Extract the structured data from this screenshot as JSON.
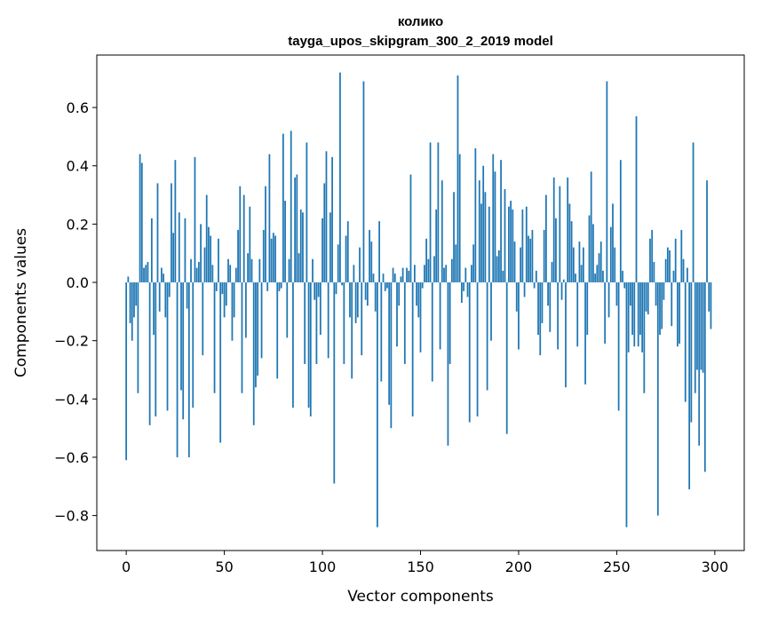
{
  "chart_data": {
    "type": "bar",
    "title_line1": "колико",
    "title_line2": "tayga_upos_skipgram_300_2_2019 model",
    "xlabel": "Vector components",
    "ylabel": "Components values",
    "xlim": [
      -15,
      315
    ],
    "ylim": [
      -0.92,
      0.78
    ],
    "xticks": [
      0,
      50,
      100,
      150,
      200,
      250,
      300
    ],
    "yticks": [
      -0.8,
      -0.6,
      -0.4,
      -0.2,
      0.0,
      0.2,
      0.4,
      0.6
    ],
    "xtick_labels": [
      "0",
      "50",
      "100",
      "150",
      "200",
      "250",
      "300"
    ],
    "ytick_labels": [
      "−0.8",
      "−0.6",
      "−0.4",
      "−0.2",
      "0.0",
      "0.2",
      "0.4",
      "0.6"
    ],
    "bar_color": "#1f77b4",
    "values": [
      -0.61,
      0.02,
      -0.14,
      -0.2,
      -0.12,
      -0.08,
      -0.38,
      0.44,
      0.41,
      0.05,
      0.06,
      0.07,
      -0.49,
      0.22,
      -0.18,
      -0.46,
      0.34,
      -0.1,
      0.05,
      0.03,
      -0.12,
      -0.44,
      -0.05,
      0.34,
      0.17,
      0.42,
      -0.6,
      0.24,
      -0.37,
      -0.47,
      0.22,
      -0.09,
      -0.6,
      0.08,
      -0.43,
      0.43,
      0.05,
      0.07,
      0.2,
      -0.25,
      0.12,
      0.3,
      0.19,
      0.16,
      0.06,
      -0.38,
      -0.03,
      0.15,
      -0.55,
      -0.04,
      -0.12,
      -0.08,
      0.08,
      0.06,
      -0.2,
      -0.12,
      0.05,
      0.18,
      0.33,
      -0.38,
      0.3,
      -0.19,
      0.1,
      0.26,
      0.08,
      -0.49,
      -0.36,
      -0.32,
      0.08,
      -0.26,
      0.18,
      0.33,
      -0.03,
      0.44,
      0.15,
      0.17,
      0.16,
      -0.33,
      -0.03,
      -0.02,
      0.51,
      0.28,
      -0.19,
      0.08,
      0.52,
      -0.43,
      0.36,
      0.37,
      0.1,
      0.25,
      0.24,
      -0.28,
      0.48,
      -0.43,
      -0.46,
      0.08,
      -0.06,
      -0.28,
      -0.05,
      -0.18,
      0.22,
      0.34,
      0.45,
      -0.26,
      0.24,
      0.43,
      -0.69,
      -0.04,
      0.13,
      0.72,
      -0.01,
      -0.28,
      0.16,
      0.21,
      -0.12,
      -0.33,
      0.06,
      -0.14,
      -0.12,
      0.12,
      -0.25,
      0.69,
      -0.06,
      -0.08,
      0.18,
      0.14,
      0.03,
      -0.1,
      -0.84,
      0.21,
      -0.34,
      0.03,
      -0.03,
      -0.02,
      -0.42,
      -0.5,
      0.05,
      0.03,
      -0.22,
      -0.08,
      0.02,
      0.05,
      -0.28,
      0.05,
      0.04,
      0.37,
      -0.46,
      0.06,
      -0.08,
      -0.12,
      -0.24,
      -0.02,
      0.06,
      0.15,
      0.08,
      0.48,
      -0.34,
      0.09,
      0.25,
      0.48,
      -0.23,
      0.35,
      0.05,
      0.06,
      -0.56,
      -0.28,
      0.08,
      0.31,
      0.13,
      0.71,
      0.44,
      -0.07,
      -0.03,
      0.05,
      -0.05,
      -0.48,
      0.06,
      0.13,
      0.46,
      -0.46,
      0.35,
      0.27,
      0.4,
      0.31,
      -0.37,
      0.26,
      -0.2,
      0.44,
      0.38,
      0.09,
      0.11,
      0.42,
      0.04,
      0.32,
      -0.52,
      0.26,
      0.28,
      0.25,
      0.14,
      -0.1,
      -0.23,
      0.12,
      0.25,
      -0.05,
      0.26,
      0.16,
      0.15,
      0.18,
      -0.02,
      0.04,
      -0.18,
      -0.25,
      -0.14,
      0.18,
      0.3,
      -0.08,
      -0.17,
      0.07,
      0.36,
      0.22,
      -0.23,
      0.33,
      -0.06,
      0.01,
      -0.36,
      0.36,
      0.27,
      0.21,
      0.12,
      0.03,
      -0.22,
      0.14,
      0.06,
      0.12,
      -0.35,
      -0.18,
      0.23,
      0.38,
      0.2,
      0.03,
      0.06,
      0.1,
      0.14,
      0.04,
      -0.21,
      0.69,
      -0.12,
      0.19,
      0.27,
      0.12,
      -0.08,
      -0.44,
      0.42,
      0.04,
      -0.02,
      -0.84,
      -0.24,
      -0.08,
      -0.18,
      -0.22,
      0.57,
      -0.22,
      -0.18,
      -0.24,
      -0.38,
      -0.1,
      -0.11,
      0.15,
      0.18,
      0.07,
      -0.08,
      -0.8,
      -0.18,
      -0.16,
      -0.06,
      0.08,
      0.12,
      0.11,
      -0.15,
      0.04,
      0.15,
      -0.22,
      -0.21,
      0.18,
      0.08,
      -0.41,
      0.05,
      -0.71,
      -0.48,
      0.48,
      -0.38,
      -0.3,
      -0.56,
      -0.3,
      -0.31,
      -0.65,
      0.35,
      -0.1,
      -0.16
    ]
  }
}
